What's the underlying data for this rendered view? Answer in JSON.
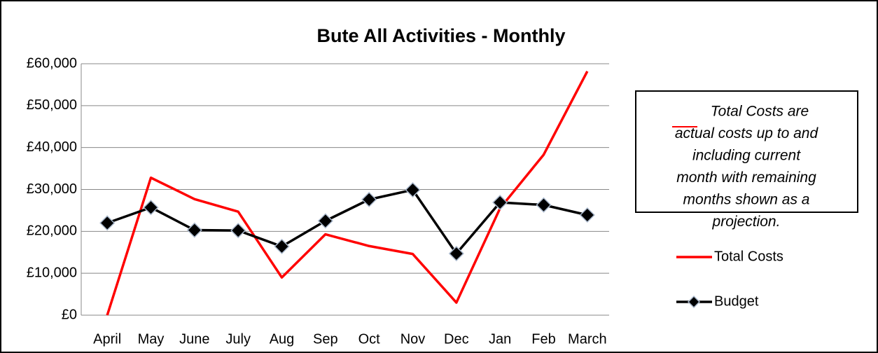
{
  "chart_data": {
    "type": "line",
    "title": "Bute All Activities - Monthly",
    "categories": [
      "April",
      "May",
      "June",
      "July",
      "Aug",
      "Sep",
      "Oct",
      "Nov",
      "Dec",
      "Jan",
      "Feb",
      "March"
    ],
    "series": [
      {
        "name": "Total Costs",
        "color": "#ff0000",
        "marker": "none",
        "values": [
          0,
          32800,
          27700,
          24700,
          9000,
          19300,
          16500,
          14600,
          3000,
          25500,
          38300,
          58200
        ]
      },
      {
        "name": "Budget",
        "color": "#000000",
        "marker": "diamond",
        "values": [
          22000,
          25700,
          20300,
          20200,
          16400,
          22500,
          27600,
          29900,
          14700,
          26900,
          26300,
          23900
        ]
      }
    ],
    "ylim": [
      0,
      60000
    ],
    "yticks": [
      {
        "value": 0,
        "label": "£0"
      },
      {
        "value": 10000,
        "label": "£10,000"
      },
      {
        "value": 20000,
        "label": "£20,000"
      },
      {
        "value": 30000,
        "label": "£30,000"
      },
      {
        "value": 40000,
        "label": "£40,000"
      },
      {
        "value": 50000,
        "label": "£50,000"
      },
      {
        "value": 60000,
        "label": "£60,000"
      }
    ],
    "grid": true,
    "legend": "right",
    "annotation_lines": [
      "Total Costs are",
      "actual costs up to and",
      "including current",
      "month with remaining",
      "months shown as a",
      "projection."
    ]
  }
}
